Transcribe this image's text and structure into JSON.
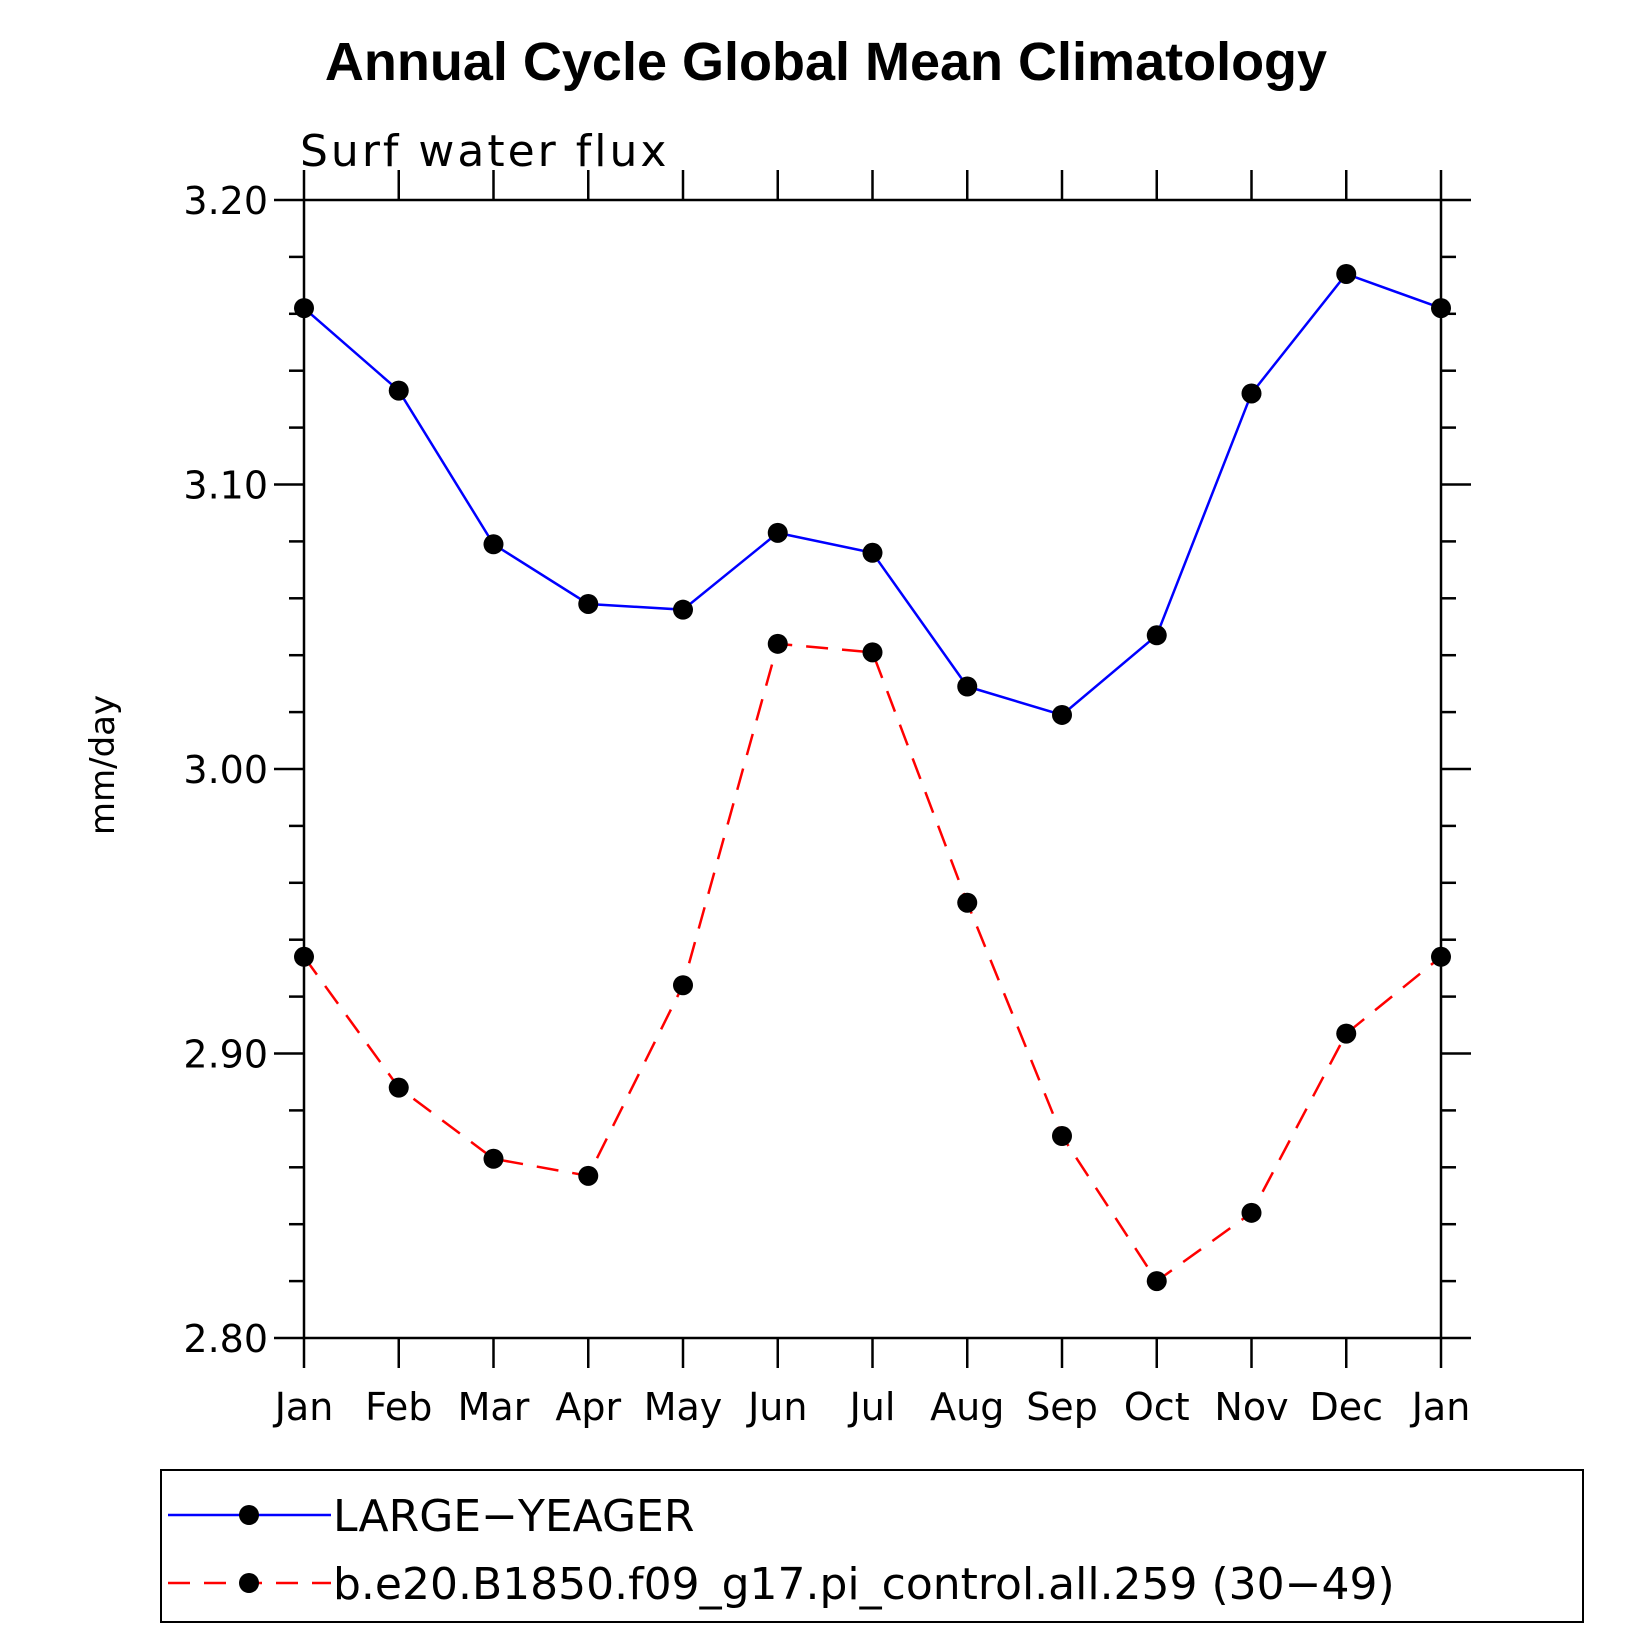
{
  "chart_data": {
    "type": "line",
    "title": "Annual Cycle Global Mean Climatology",
    "subtitle": "Surf water flux",
    "ylabel": "mm/day",
    "xlabel": "",
    "ylim": [
      2.8,
      3.2
    ],
    "yticks": [
      "3.20",
      "3.10",
      "3.00",
      "2.90",
      "2.80"
    ],
    "ytick_values": [
      3.2,
      3.1,
      3.0,
      2.9,
      2.8
    ],
    "categories": [
      "Jan",
      "Feb",
      "Mar",
      "Apr",
      "May",
      "Jun",
      "Jul",
      "Aug",
      "Sep",
      "Oct",
      "Nov",
      "Dec",
      "Jan"
    ],
    "grid": false,
    "legend_position": "bottom",
    "series": [
      {
        "name": "LARGE−YEAGER",
        "color": "#0000ff",
        "dash": "solid",
        "marker": "circle",
        "values": [
          3.162,
          3.133,
          3.079,
          3.058,
          3.056,
          3.083,
          3.076,
          3.029,
          3.019,
          3.047,
          3.132,
          3.174,
          3.162
        ]
      },
      {
        "name": "b.e20.B1850.f09_g17.pi_control.all.259 (30−49)",
        "color": "#ff0000",
        "dash": "dashed",
        "marker": "circle",
        "values": [
          2.934,
          2.888,
          2.863,
          2.857,
          2.924,
          3.044,
          3.041,
          2.953,
          2.871,
          2.82,
          2.844,
          2.907,
          2.934
        ]
      }
    ]
  }
}
